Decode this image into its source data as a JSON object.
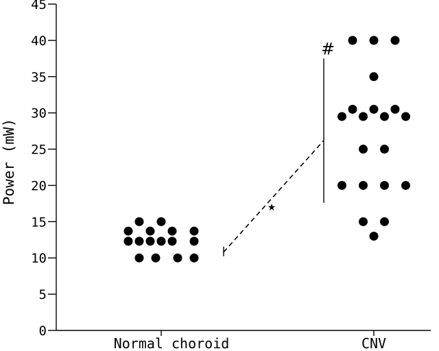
{
  "chart_data": {
    "type": "scatter",
    "title": "",
    "ylabel": "Power (mW)",
    "xlabel": "",
    "ylim": [
      0,
      45
    ],
    "yticks": [
      0,
      5,
      10,
      15,
      20,
      25,
      30,
      35,
      40,
      45
    ],
    "categories": [
      "Normal choroid",
      "CNV"
    ],
    "grid": false,
    "series": [
      {
        "category": "Normal choroid",
        "points": [
          {
            "offset": -3,
            "y": 13.7
          },
          {
            "offset": -1,
            "y": 13.7
          },
          {
            "offset": 1,
            "y": 13.7
          },
          {
            "offset": 3,
            "y": 13.7
          },
          {
            "offset": -3,
            "y": 12.3
          },
          {
            "offset": -1,
            "y": 12.3
          },
          {
            "offset": 1,
            "y": 12.3
          },
          {
            "offset": 3,
            "y": 12.3
          },
          {
            "offset": -2,
            "y": 15
          },
          {
            "offset": 0,
            "y": 15
          },
          {
            "offset": -2,
            "y": 12.3
          },
          {
            "offset": 0,
            "y": 12.3
          },
          {
            "offset": -2,
            "y": 10
          },
          {
            "offset": -0.5,
            "y": 10
          },
          {
            "offset": 1.5,
            "y": 10
          },
          {
            "offset": 3,
            "y": 10
          }
        ]
      },
      {
        "category": "CNV",
        "points": [
          {
            "offset": -1,
            "y": 40
          },
          {
            "offset": 0,
            "y": 40
          },
          {
            "offset": 1,
            "y": 40
          },
          {
            "offset": 0,
            "y": 35
          },
          {
            "offset": -1.5,
            "y": 29.5
          },
          {
            "offset": -0.5,
            "y": 29.5
          },
          {
            "offset": 0.5,
            "y": 29.5
          },
          {
            "offset": 1.5,
            "y": 29.5
          },
          {
            "offset": -1,
            "y": 30.5
          },
          {
            "offset": 0,
            "y": 30.5
          },
          {
            "offset": 1,
            "y": 30.5
          },
          {
            "offset": -0.5,
            "y": 25
          },
          {
            "offset": 0.5,
            "y": 25
          },
          {
            "offset": -1.5,
            "y": 20
          },
          {
            "offset": -0.5,
            "y": 20
          },
          {
            "offset": 0.5,
            "y": 20
          },
          {
            "offset": 1.5,
            "y": 20
          },
          {
            "offset": -0.5,
            "y": 15
          },
          {
            "offset": 0.5,
            "y": 15
          },
          {
            "offset": 0,
            "y": 13
          }
        ]
      }
    ],
    "annotations": {
      "hash": "#",
      "star": "★",
      "dashed_line": {
        "from": [
          10.8
        ],
        "to": [
          26.2
        ]
      },
      "range_bar": {
        "y_from": 17.6,
        "y_to": 37.5
      }
    }
  }
}
